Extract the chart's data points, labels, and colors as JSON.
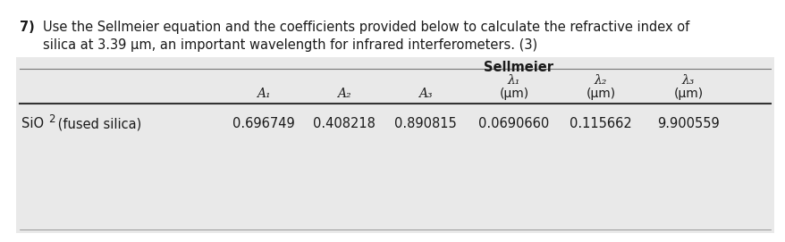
{
  "question_number": "7)",
  "question_text": "Use the Sellmeier equation and the coefficients provided below to calculate the refractive index of",
  "question_text2": "silica at 3.39 μm, an important wavelength for infrared interferometers. (3)",
  "table_title": "Sellmeier",
  "row_label_main": "SiO",
  "row_label_sub": "2",
  "row_label_rest": " (fused silica)",
  "row_values": [
    "0.696749",
    "0.408218",
    "0.890815",
    "0.0690660",
    "0.115662",
    "9.900559"
  ],
  "bg_color": "#e9e9e9",
  "text_color": "#1a1a1a",
  "font_size": 10.5
}
